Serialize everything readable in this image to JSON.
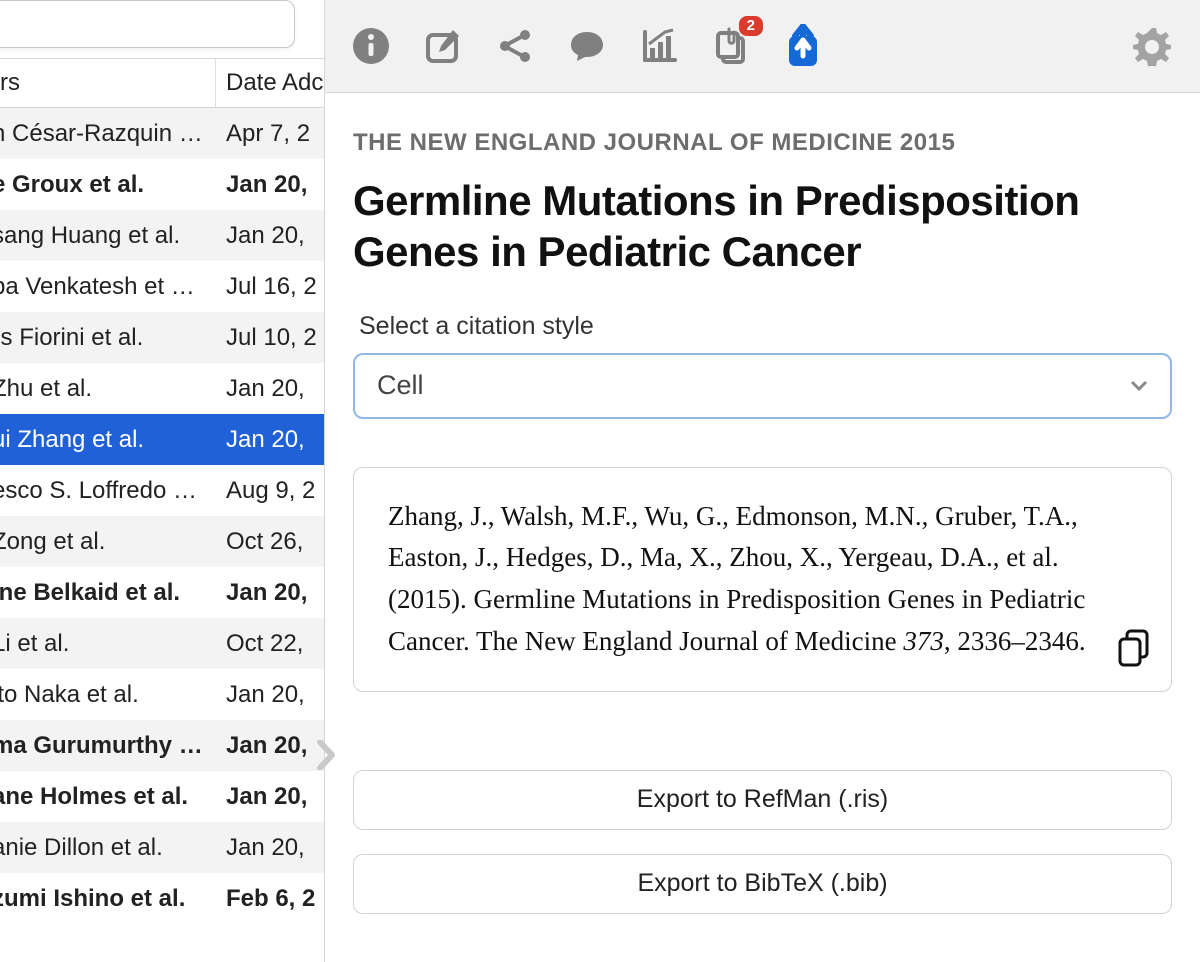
{
  "left": {
    "search_value": "",
    "columns": {
      "authors": "rs",
      "date": "Date Adc"
    },
    "rows": [
      {
        "authors": "n César-Razquin …",
        "date": "Apr 7, 2",
        "bold": false
      },
      {
        "authors": "e Groux et al.",
        "date": "Jan 20,",
        "bold": true
      },
      {
        "authors": "sang Huang et al.",
        "date": "Jan 20,",
        "bold": false
      },
      {
        "authors": "pa Venkatesh et …",
        "date": "Jul 16, 2",
        "bold": false
      },
      {
        "authors": "ɪs Fiorini et al.",
        "date": "Jul 10, 2",
        "bold": false
      },
      {
        "authors": " Zhu et al.",
        "date": "Jan 20,",
        "bold": false
      },
      {
        "authors": "ui Zhang et al.",
        "date": "Jan 20,",
        "bold": false,
        "selected": true
      },
      {
        "authors": "esco S. Loffredo …",
        "date": "Aug 9, 2",
        "bold": false
      },
      {
        "authors": " Zong et al.",
        "date": "Oct 26,",
        "bold": false
      },
      {
        "authors": "ine Belkaid et al.",
        "date": "Jan 20,",
        "bold": true
      },
      {
        "authors": " Li et al.",
        "date": "Oct 22,",
        "bold": false
      },
      {
        "authors": "ito Naka et al.",
        "date": "Jan 20,",
        "bold": false
      },
      {
        "authors": "ma Gurumurthy …",
        "date": "Jan 20,",
        "bold": true
      },
      {
        "authors": "ane Holmes et al.",
        "date": "Jan 20,",
        "bold": true
      },
      {
        "authors": "anie Dillon et al.",
        "date": "Jan 20,",
        "bold": false
      },
      {
        "authors": "zumi Ishino et al.",
        "date": "Feb 6, 2",
        "bold": true
      }
    ]
  },
  "toolbar": {
    "badge_count": "2"
  },
  "detail": {
    "journal": "THE NEW ENGLAND JOURNAL OF MEDICINE 2015",
    "title": "Germline Mutations in Predisposition Genes in Pediatric Cancer",
    "style_label": "Select a citation style",
    "style_value": "Cell",
    "citation_pre": "Zhang, J., Walsh, M.F., Wu, G., Edmonson, M.N., Gruber, T.A., Easton, J., Hedges, D., Ma, X., Zhou, X., Yergeau, D.A., et al. (2015). Germline Mutations in Predisposition Genes in Pediatric Cancer. The New England Journal of Medicine ",
    "citation_vol": "373",
    "citation_post": ", 2336–2346.",
    "export_ris": "Export to RefMan (.ris)",
    "export_bib": "Export to BibTeX (.bib)"
  },
  "colors": {
    "selection": "#2161d8",
    "badge": "#db3a2d",
    "icon_gray": "#808080",
    "upload_blue": "#1569d6"
  }
}
